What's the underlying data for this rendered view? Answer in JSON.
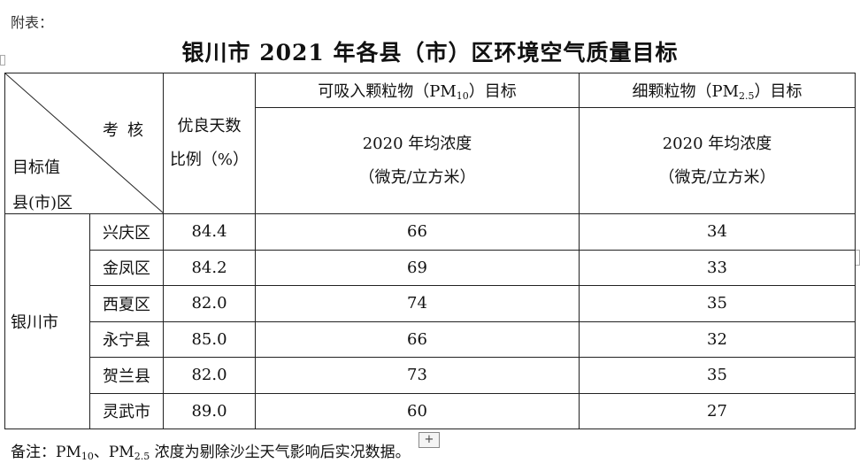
{
  "caption_top": "附表：",
  "title": "银川市 2021  年各县（市）区环境空气质量目标",
  "header": {
    "diag_top": "考核",
    "diag_mid": "目标值",
    "diag_bottom": "县(市)区",
    "good_days_line1": "优良天数",
    "good_days_line2": "比例（%）",
    "pm10_prefix": "可吸入颗粒物（PM",
    "pm10_sub": "10",
    "pm10_suffix": "）目标",
    "pm25_prefix": "细颗粒物（PM",
    "pm25_sub": "2.5",
    "pm25_suffix": "）目标",
    "pm10_metric_line1": "2020 年均浓度",
    "pm10_metric_line2": "（微克/立方米）",
    "pm25_metric_line1": "2020 年均浓度",
    "pm25_metric_line2": "（微克/立方米）"
  },
  "city": "银川市",
  "rows": [
    {
      "district": "兴庆区",
      "good_days": "84.4",
      "pm10": "66",
      "pm25": "34"
    },
    {
      "district": "金凤区",
      "good_days": "84.2",
      "pm10": "69",
      "pm25": "33"
    },
    {
      "district": "西夏区",
      "good_days": "82.0",
      "pm10": "74",
      "pm25": "35"
    },
    {
      "district": "永宁县",
      "good_days": "85.0",
      "pm10": "66",
      "pm25": "32"
    },
    {
      "district": "贺兰县",
      "good_days": "82.0",
      "pm10": "73",
      "pm25": "35"
    },
    {
      "district": "灵武市",
      "good_days": "89.0",
      "pm10": "60",
      "pm25": "27"
    }
  ],
  "note": {
    "prefix": "备注：PM",
    "sub1": "10",
    "mid": "、PM",
    "sub2": "2.5",
    "suffix": " 浓度为剔除沙尘天气影响后实况数据。"
  },
  "plus_handle": "+"
}
